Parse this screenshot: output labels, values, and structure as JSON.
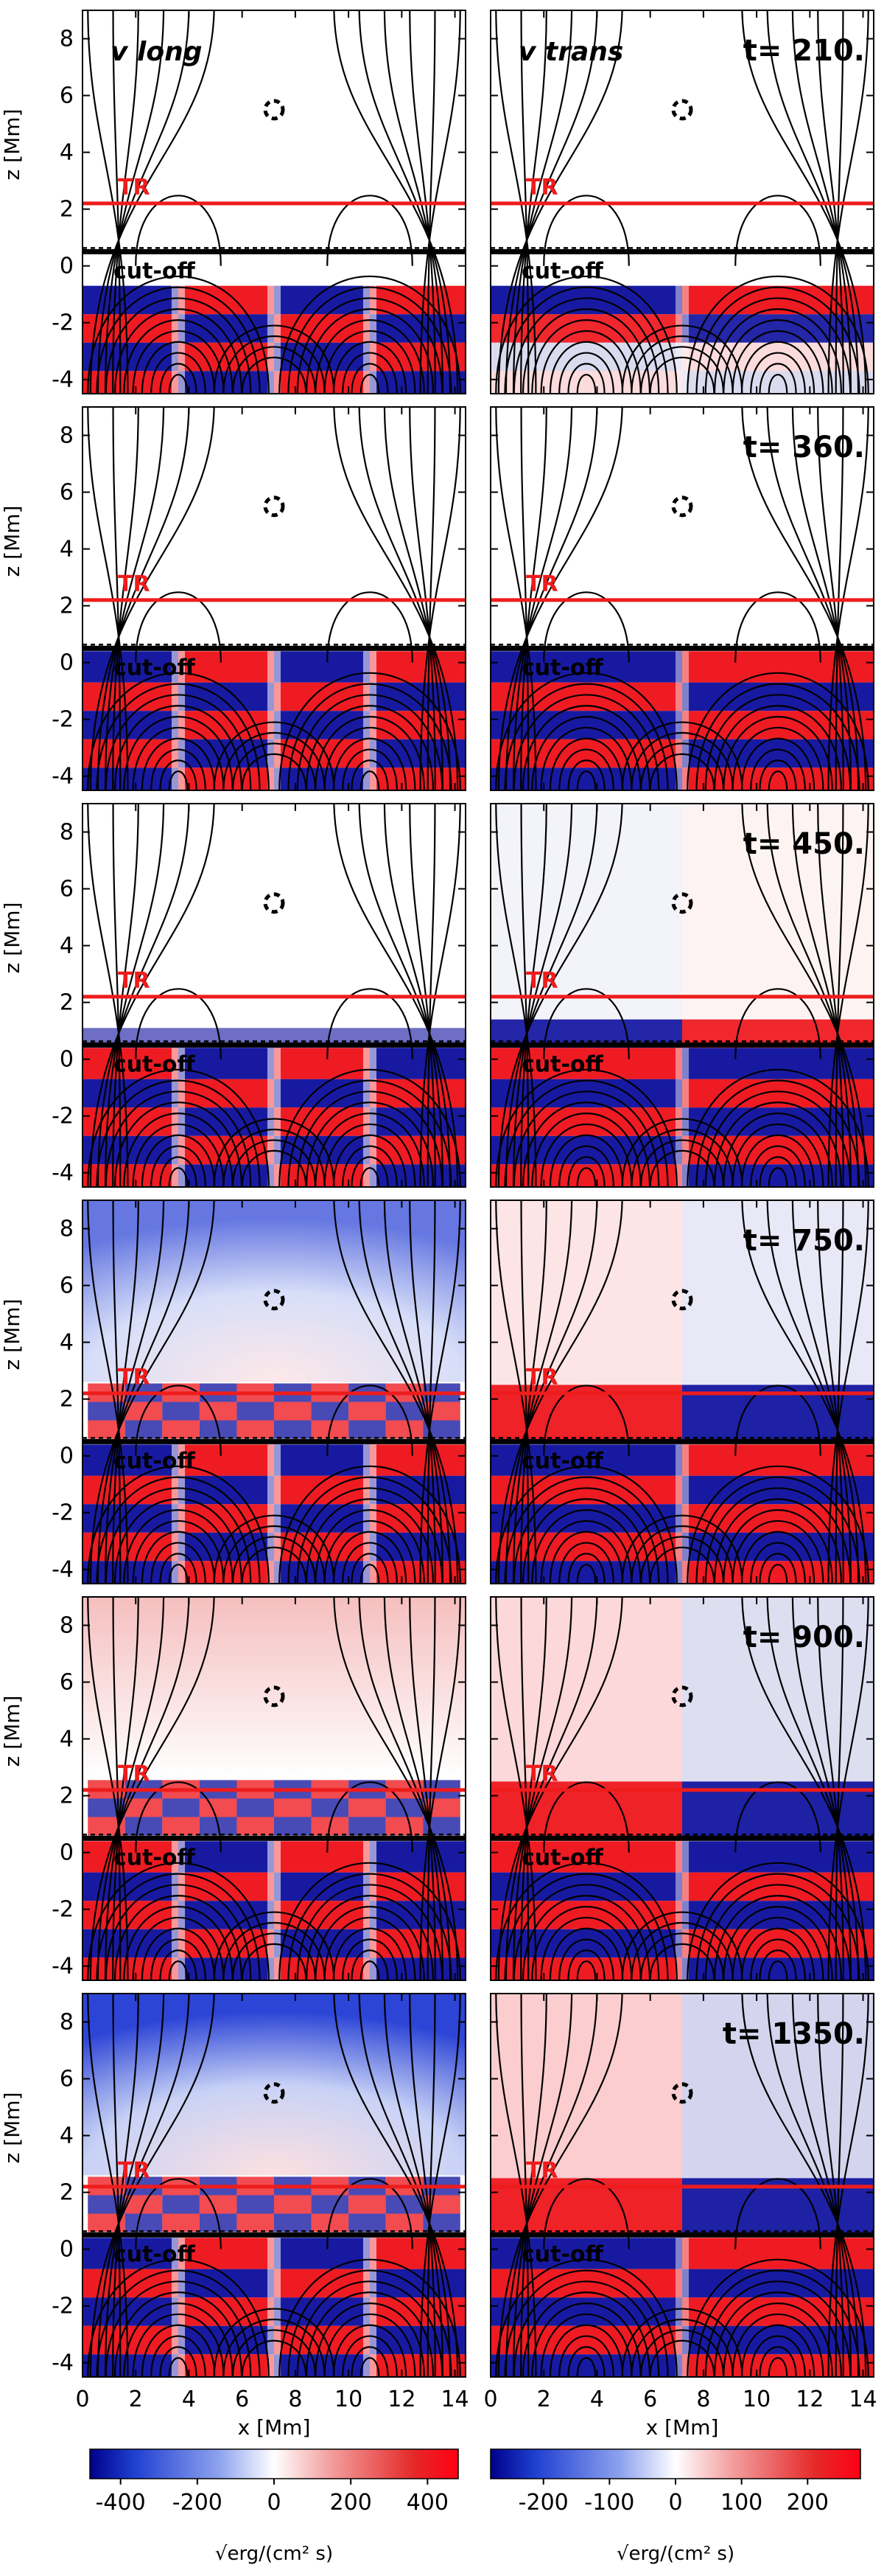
{
  "chart_data": {
    "type": "heatmap",
    "panels_grid": {
      "rows": 6,
      "cols": 2
    },
    "xlabel": "x [Mm]",
    "ylabel": "z [Mm]",
    "xlim": [
      0,
      14.4
    ],
    "ylim": [
      -4.5,
      9
    ],
    "x_ticks": [
      0,
      2,
      4,
      6,
      8,
      10,
      12,
      14
    ],
    "y_ticks": [
      -4,
      -2,
      0,
      2,
      4,
      6,
      8
    ],
    "columns": [
      {
        "label": "v long",
        "colorbar": {
          "ticks": [
            -400,
            -200,
            0,
            200,
            400
          ],
          "range": [
            -480,
            480
          ],
          "unit": "√erg/(cm² s)"
        }
      },
      {
        "label": "v trans",
        "colorbar": {
          "ticks": [
            -200,
            -100,
            0,
            100,
            200
          ],
          "range": [
            -280,
            280
          ],
          "unit": "√erg/(cm² s)"
        }
      }
    ],
    "times": [
      "t= 210.",
      "t= 360.",
      "t= 450.",
      "t= 750.",
      "t= 900.",
      "t= 1350."
    ],
    "lines": {
      "TR": {
        "label": "TR",
        "z": 2.2,
        "color": "#ee1c1c"
      },
      "cutoff": {
        "label": "cut-off",
        "z": 0.5,
        "color": "#000000"
      }
    },
    "null_point": {
      "x": 7.2,
      "z": 5.5
    },
    "upper_fill_level": [
      0,
      0,
      0,
      0.18,
      0.32,
      0.45
    ]
  }
}
